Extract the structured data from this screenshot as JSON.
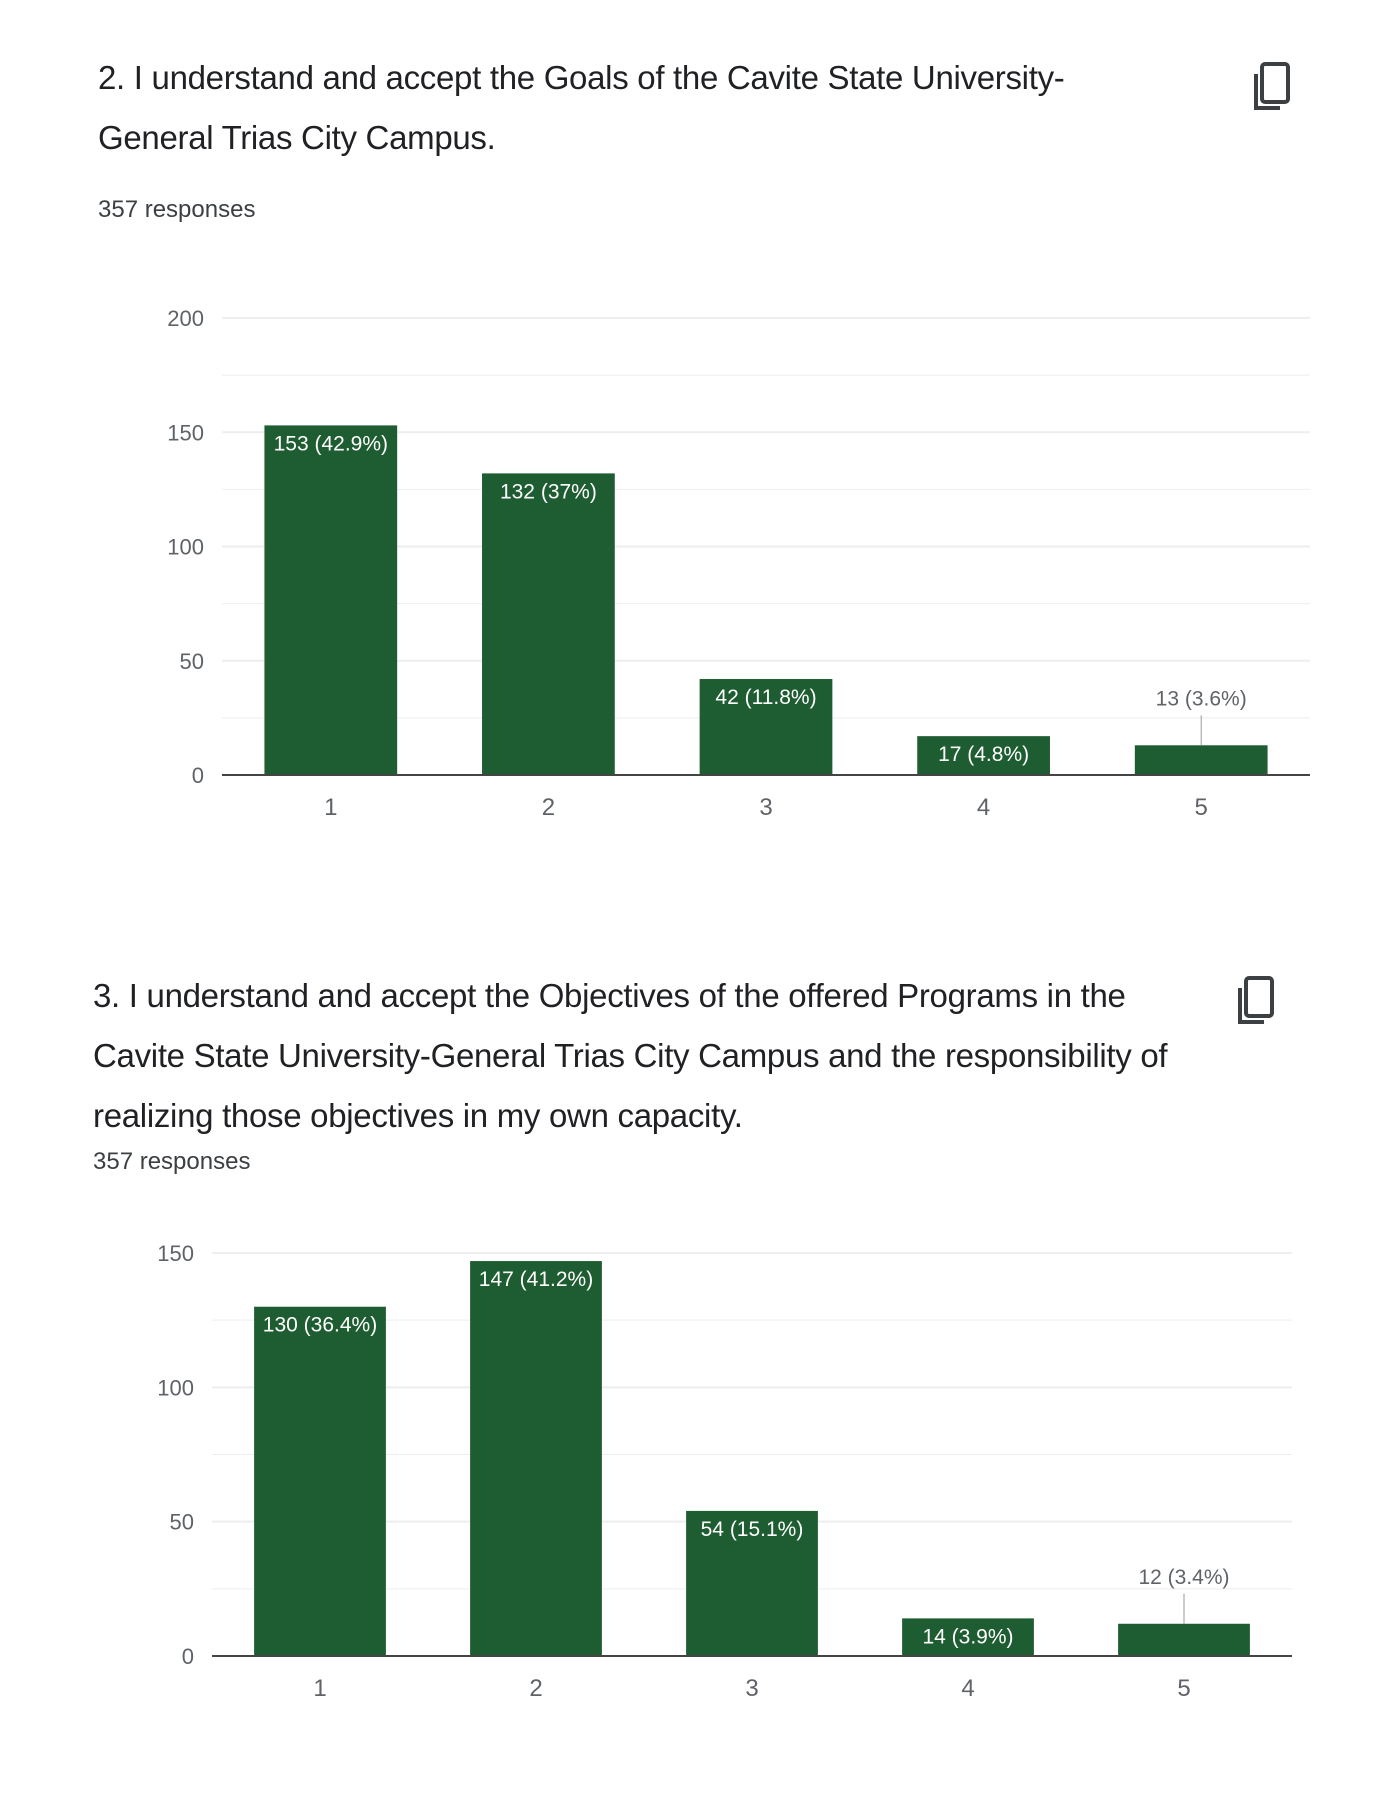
{
  "colors": {
    "bar": "#1e5c31",
    "grid": "#eeeeee",
    "axis": "#444444",
    "text": "#202124",
    "muted": "#5f6368"
  },
  "questions": [
    {
      "title": "2. I understand and accept the Goals of the Cavite State University-General Trias City Campus.",
      "responses": "357 responses",
      "copy_icon": "copy-icon"
    },
    {
      "title": "3. I understand and accept the Objectives of the offered Programs in the Cavite State University-General Trias City Campus and the responsibility of realizing those objectives in my own capacity.",
      "responses": "357 responses",
      "copy_icon": "copy-icon"
    }
  ],
  "chart_data": [
    {
      "type": "bar",
      "categories": [
        "1",
        "2",
        "3",
        "4",
        "5"
      ],
      "values": [
        153,
        132,
        42,
        17,
        13
      ],
      "labels": [
        "153 (42.9%)",
        "132 (37%)",
        "42 (11.8%)",
        "17 (4.8%)",
        "13 (3.6%)"
      ],
      "yticks": [
        0,
        50,
        100,
        150,
        200
      ],
      "ylim": [
        0,
        200
      ],
      "grid": true
    },
    {
      "type": "bar",
      "categories": [
        "1",
        "2",
        "3",
        "4",
        "5"
      ],
      "values": [
        130,
        147,
        54,
        14,
        12
      ],
      "labels": [
        "130 (36.4%)",
        "147 (41.2%)",
        "54 (15.1%)",
        "14 (3.9%)",
        "12 (3.4%)"
      ],
      "yticks": [
        0,
        50,
        100,
        150
      ],
      "ylim": [
        0,
        150
      ],
      "grid": true
    }
  ]
}
